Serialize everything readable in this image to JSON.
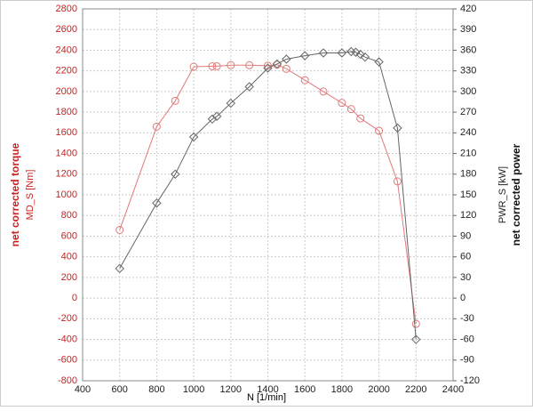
{
  "chart_data": {
    "type": "line",
    "xlabel": "N [1/min]",
    "ylabel": [
      "net corrected torque",
      "MD_S [Nm]"
    ],
    "y2label": [
      "PWR_S [kW]",
      "net corrected power"
    ],
    "xlim": [
      400,
      2400
    ],
    "xticks": [
      400,
      600,
      800,
      1000,
      1200,
      1400,
      1600,
      1800,
      2000,
      2200,
      2400
    ],
    "ylim": [
      -800,
      2800
    ],
    "yticks": [
      -800,
      -600,
      -400,
      -200,
      0,
      200,
      400,
      600,
      800,
      1000,
      1200,
      1400,
      1600,
      1800,
      2000,
      2200,
      2400,
      2600,
      2800
    ],
    "y2lim": [
      -120,
      420
    ],
    "y2ticks": [
      -120,
      -90,
      -60,
      -30,
      0,
      30,
      60,
      90,
      120,
      150,
      180,
      210,
      240,
      270,
      300,
      330,
      360,
      390,
      420
    ],
    "grid": true,
    "series": [
      {
        "name": "MD_S",
        "color": "#e07a7a",
        "marker": "circle",
        "x": [
          600,
          800,
          900,
          1000,
          1100,
          1125,
          1200,
          1300,
          1400,
          1450,
          1500,
          1600,
          1700,
          1800,
          1850,
          1900,
          2000,
          2100,
          2200
        ],
        "values": [
          660,
          1660,
          1910,
          2240,
          2245,
          2245,
          2255,
          2255,
          2250,
          2260,
          2220,
          2110,
          2000,
          1890,
          1830,
          1740,
          1620,
          1130,
          -250
        ]
      },
      {
        "name": "PWR_S",
        "color": "#666666",
        "marker": "diamond",
        "axis": "y2",
        "x": [
          600,
          800,
          900,
          1000,
          1100,
          1125,
          1200,
          1300,
          1400,
          1450,
          1500,
          1600,
          1700,
          1800,
          1850,
          1875,
          1900,
          1925,
          2000,
          2100,
          2200
        ],
        "values": [
          43,
          138,
          180,
          234,
          260,
          264,
          283,
          307,
          334,
          340,
          347,
          352,
          356,
          356,
          358,
          357,
          354,
          350,
          343,
          247,
          -60
        ]
      }
    ]
  }
}
